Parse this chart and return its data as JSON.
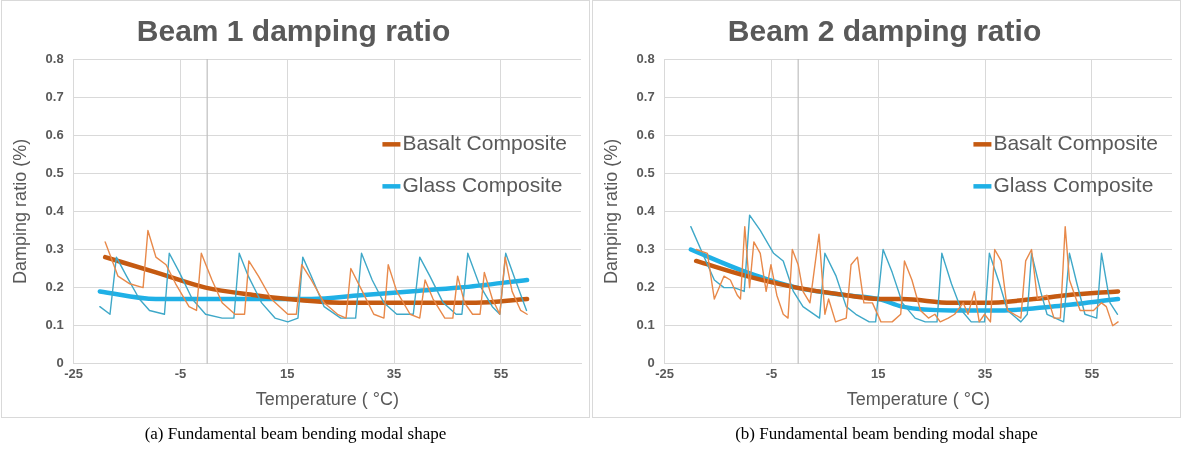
{
  "chart_data": [
    {
      "type": "line",
      "title": "Beam 1 damping ratio",
      "xlabel": "Temperature ( °C)",
      "ylabel": "Damping ratio (%)",
      "xlim": [
        -25,
        70
      ],
      "xticks": [
        -25,
        -5,
        15,
        35,
        55
      ],
      "ylim": [
        0,
        0.8
      ],
      "yticks": [
        0,
        0.1,
        0.2,
        0.3,
        0.4,
        0.5,
        0.6,
        0.7,
        0.8
      ],
      "grid": true,
      "legend": "right",
      "marker": "none",
      "line_style": "solid",
      "ref_lines": [
        {
          "axis": "x",
          "value": 0,
          "color": "#bfbfbf"
        }
      ],
      "annotations": [
        "(a) Fundamental beam bending modal shape"
      ],
      "series": [
        {
          "color": "#e8894a",
          "x": [
            -19.1,
            -16.7,
            -14.5,
            -12,
            -11.1,
            -9.6,
            -7.7,
            -5.9,
            -3.4,
            -2,
            -1.1,
            0.9,
            2.8,
            5.2,
            7,
            7.8,
            9.6,
            12,
            15.1,
            16.7,
            17.7,
            19.5,
            21.9,
            24.4,
            26,
            26.9,
            28.7,
            31.2,
            33.1,
            33.9,
            35.5,
            38,
            39.8,
            40.8,
            42.3,
            44.5,
            46,
            46.9,
            48.2,
            49.7,
            51.1,
            51.9,
            53.4,
            54.8,
            55.8,
            57.1,
            58.7,
            59.9
          ],
          "values": [
            0.32,
            0.23,
            0.21,
            0.2,
            0.35,
            0.28,
            0.26,
            0.21,
            0.15,
            0.14,
            0.29,
            0.22,
            0.16,
            0.13,
            0.13,
            0.27,
            0.23,
            0.17,
            0.13,
            0.13,
            0.26,
            0.22,
            0.16,
            0.13,
            0.12,
            0.25,
            0.2,
            0.13,
            0.12,
            0.26,
            0.19,
            0.13,
            0.12,
            0.22,
            0.17,
            0.12,
            0.12,
            0.23,
            0.16,
            0.13,
            0.13,
            0.24,
            0.17,
            0.13,
            0.28,
            0.19,
            0.14,
            0.13
          ]
        },
        {
          "color": "#3fa8c8",
          "x": [
            -20.1,
            -18.2,
            -17,
            -15.1,
            -12.7,
            -10.8,
            -8,
            -7.1,
            -5.2,
            -2.8,
            -0.3,
            2.8,
            5,
            6,
            7.7,
            10.2,
            12.7,
            15.1,
            17,
            17.9,
            19.5,
            21.9,
            25,
            27.8,
            28.9,
            30.9,
            33.1,
            35.5,
            38.6,
            39.8,
            41.7,
            44.2,
            46.6,
            47.7,
            48.8,
            50.9,
            53.4,
            54.8,
            55.9,
            57.7,
            59.8
          ],
          "values": [
            0.15,
            0.13,
            0.28,
            0.23,
            0.17,
            0.14,
            0.13,
            0.29,
            0.24,
            0.17,
            0.13,
            0.12,
            0.12,
            0.29,
            0.23,
            0.16,
            0.12,
            0.11,
            0.12,
            0.28,
            0.23,
            0.15,
            0.12,
            0.12,
            0.29,
            0.22,
            0.16,
            0.13,
            0.13,
            0.28,
            0.23,
            0.16,
            0.13,
            0.13,
            0.29,
            0.21,
            0.15,
            0.13,
            0.29,
            0.22,
            0.14
          ]
        },
        {
          "name": "Basalt Composite",
          "color": "#c55a11",
          "x": [
            -19.1,
            -9.6,
            -0.3,
            9,
            15.1,
            25.6,
            38,
            50.3,
            59.9
          ],
          "values": [
            0.28,
            0.24,
            0.2,
            0.18,
            0.17,
            0.16,
            0.16,
            0.16,
            0.17
          ]
        },
        {
          "name": "Glass Composite",
          "color": "#1fb0e6",
          "x": [
            -20.1,
            -9.6,
            -0.3,
            19.5,
            28.7,
            38,
            47.3,
            59.9
          ],
          "values": [
            0.19,
            0.17,
            0.17,
            0.17,
            0.18,
            0.19,
            0.2,
            0.22
          ]
        }
      ]
    },
    {
      "type": "line",
      "title": "Beam 2 damping ratio",
      "xlabel": "Temperature ( °C)",
      "ylabel": "Damping ratio (%)",
      "xlim": [
        -25,
        70
      ],
      "xticks": [
        -25,
        -5,
        15,
        35,
        55
      ],
      "ylim": [
        0,
        0.8
      ],
      "yticks": [
        0,
        0.1,
        0.2,
        0.3,
        0.4,
        0.5,
        0.6,
        0.7,
        0.8
      ],
      "grid": true,
      "legend": "right",
      "marker": "none",
      "line_style": "solid",
      "ref_lines": [
        {
          "axis": "x",
          "value": 0,
          "color": "#bfbfbf"
        }
      ],
      "annotations": [
        "(b) Fundamental beam bending modal shape"
      ],
      "series": [
        {
          "color": "#e8894a",
          "x": [
            -19.1,
            -17,
            -15.7,
            -13.9,
            -12.7,
            -11.4,
            -10.8,
            -10,
            -9.1,
            -8.3,
            -7.1,
            -6,
            -5.1,
            -4,
            -2.8,
            -1.9,
            -1.1,
            0,
            0.9,
            2.2,
            3.9,
            5,
            5.7,
            7,
            9,
            9.9,
            11.1,
            12.3,
            13.9,
            15.5,
            17.6,
            19.2,
            19.9,
            21.3,
            22.9,
            24.4,
            25.6,
            26.6,
            28.1,
            29.3,
            30.9,
            31.8,
            33,
            33.9,
            34.9,
            36,
            36.8,
            38,
            39.2,
            41.7,
            42.6,
            43.7,
            44.8,
            46.6,
            47.9,
            49.1,
            50,
            50.8,
            52.8,
            55.3,
            56.8,
            57.7,
            58.9,
            59.9
          ],
          "values": [
            0.3,
            0.29,
            0.17,
            0.23,
            0.22,
            0.18,
            0.17,
            0.36,
            0.2,
            0.32,
            0.29,
            0.19,
            0.26,
            0.18,
            0.13,
            0.12,
            0.3,
            0.26,
            0.19,
            0.16,
            0.34,
            0.13,
            0.17,
            0.11,
            0.12,
            0.26,
            0.28,
            0.16,
            0.16,
            0.11,
            0.11,
            0.13,
            0.27,
            0.22,
            0.14,
            0.12,
            0.13,
            0.11,
            0.12,
            0.13,
            0.16,
            0.13,
            0.19,
            0.11,
            0.13,
            0.11,
            0.3,
            0.27,
            0.14,
            0.12,
            0.27,
            0.3,
            0.17,
            0.18,
            0.12,
            0.12,
            0.36,
            0.22,
            0.14,
            0.14,
            0.16,
            0.15,
            0.1,
            0.11
          ]
        },
        {
          "color": "#3fa8c8",
          "x": [
            -20.1,
            -17.6,
            -15.7,
            -13.9,
            -12,
            -10.1,
            -9.1,
            -7.1,
            -4.6,
            -2.8,
            -0.9,
            0.9,
            4,
            5,
            7.1,
            9,
            10.8,
            13.3,
            14.5,
            15.9,
            17.6,
            19.5,
            21.9,
            23.8,
            26,
            26.9,
            28.7,
            30.6,
            32.4,
            34.9,
            35.8,
            37.7,
            39.2,
            41.7,
            42.9,
            43.7,
            45.4,
            46.6,
            49.7,
            50.8,
            52.2,
            53.7,
            55.9,
            56.8,
            58.4,
            59.8
          ],
          "values": [
            0.36,
            0.28,
            0.22,
            0.2,
            0.2,
            0.19,
            0.39,
            0.35,
            0.29,
            0.27,
            0.19,
            0.15,
            0.12,
            0.29,
            0.23,
            0.15,
            0.13,
            0.11,
            0.11,
            0.3,
            0.24,
            0.16,
            0.12,
            0.11,
            0.11,
            0.29,
            0.21,
            0.14,
            0.11,
            0.11,
            0.29,
            0.21,
            0.14,
            0.11,
            0.13,
            0.29,
            0.19,
            0.13,
            0.11,
            0.29,
            0.21,
            0.13,
            0.12,
            0.29,
            0.16,
            0.13
          ]
        },
        {
          "name": "Basalt Composite",
          "color": "#c55a11",
          "x": [
            -19.1,
            -9.6,
            -0.3,
            9,
            15.1,
            19.5,
            28.7,
            34.9,
            44.1,
            50.3,
            59.9
          ],
          "values": [
            0.27,
            0.23,
            0.2,
            0.18,
            0.17,
            0.17,
            0.16,
            0.16,
            0.17,
            0.18,
            0.19
          ]
        },
        {
          "name": "Glass Composite",
          "color": "#1fb0e6",
          "x": [
            -20.1,
            -9.6,
            -0.3,
            9,
            15.1,
            19.5,
            28.7,
            38,
            47.3,
            59.9
          ],
          "values": [
            0.3,
            0.24,
            0.2,
            0.18,
            0.17,
            0.15,
            0.14,
            0.14,
            0.15,
            0.17
          ]
        }
      ]
    }
  ]
}
